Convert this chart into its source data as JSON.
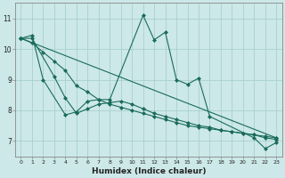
{
  "xlabel": "Humidex (Indice chaleur)",
  "background_color": "#cce8e8",
  "grid_color": "#aacfcf",
  "line_color": "#1a6b5a",
  "xlim": [
    -0.5,
    23.5
  ],
  "ylim": [
    6.5,
    11.5
  ],
  "yticks": [
    7,
    8,
    9,
    10,
    11
  ],
  "xticks": [
    0,
    1,
    2,
    3,
    4,
    5,
    6,
    7,
    8,
    9,
    10,
    11,
    12,
    13,
    14,
    15,
    16,
    17,
    18,
    19,
    20,
    21,
    22,
    23
  ],
  "line1_x": [
    0,
    1,
    2,
    4,
    5,
    6,
    7,
    8,
    11,
    12,
    13,
    14,
    15,
    16,
    17,
    21,
    22,
    23
  ],
  "line1_y": [
    10.35,
    10.45,
    9.0,
    7.85,
    7.95,
    8.3,
    8.35,
    8.35,
    11.1,
    10.3,
    10.55,
    9.0,
    8.85,
    9.05,
    7.8,
    7.1,
    6.75,
    6.95
  ],
  "line2_x": [
    0,
    1,
    2,
    3,
    4,
    5,
    6,
    7,
    8,
    9,
    10,
    11,
    12,
    13,
    14,
    15,
    16,
    17,
    18,
    19,
    20,
    21,
    22,
    23
  ],
  "line2_y": [
    10.35,
    10.2,
    9.9,
    9.6,
    9.3,
    8.8,
    8.6,
    8.35,
    8.2,
    8.1,
    8.0,
    7.9,
    7.8,
    7.7,
    7.6,
    7.5,
    7.45,
    7.4,
    7.35,
    7.3,
    7.25,
    7.2,
    7.15,
    7.1
  ],
  "line3_x": [
    0,
    23
  ],
  "line3_y": [
    10.35,
    7.1
  ],
  "line4_x": [
    0,
    1,
    3,
    4,
    5,
    6,
    7,
    8,
    9,
    10,
    11,
    12,
    13,
    14,
    15,
    16,
    17,
    18,
    19,
    20,
    21,
    22,
    23
  ],
  "line4_y": [
    10.35,
    10.35,
    9.1,
    8.4,
    7.9,
    8.05,
    8.2,
    8.25,
    8.3,
    8.2,
    8.05,
    7.9,
    7.8,
    7.7,
    7.6,
    7.5,
    7.45,
    7.35,
    7.3,
    7.25,
    7.2,
    7.1,
    7.05
  ]
}
